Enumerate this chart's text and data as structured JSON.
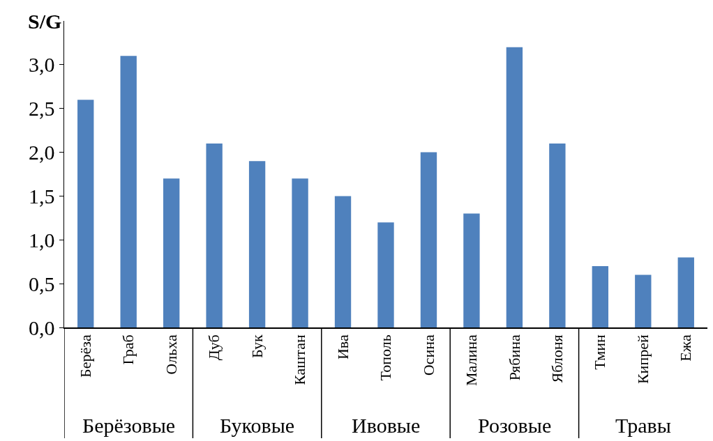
{
  "chart_data": {
    "type": "bar",
    "ylabel": "S/G",
    "categories": [
      "Берёза",
      "Граб",
      "Ольха",
      "Дуб",
      "Бук",
      "Каштан",
      "Ива",
      "Тополь",
      "Осина",
      "Малина",
      "Рябина",
      "Яблоня",
      "Тмин",
      "Кипрей",
      "Ежа"
    ],
    "values": [
      2.6,
      3.1,
      1.7,
      2.1,
      1.9,
      1.7,
      1.5,
      1.2,
      2.0,
      1.3,
      3.2,
      2.1,
      0.7,
      0.6,
      0.8
    ],
    "color": "#4f81bd",
    "ylim": [
      0,
      3.5
    ],
    "yticks": [
      {
        "value": 0,
        "label": "0,0"
      },
      {
        "value": 0.5,
        "label": "0,5"
      },
      {
        "value": 1,
        "label": "1,0"
      },
      {
        "value": 1.5,
        "label": "1,5"
      },
      {
        "value": 2,
        "label": "2,0"
      },
      {
        "value": 2.5,
        "label": "2,5"
      },
      {
        "value": 3,
        "label": "3,0"
      }
    ],
    "grid": false,
    "legend": false,
    "annotations": [
      "Берёзовые",
      "Буковые",
      "Ивовые",
      "Розовые",
      "Травы"
    ]
  }
}
